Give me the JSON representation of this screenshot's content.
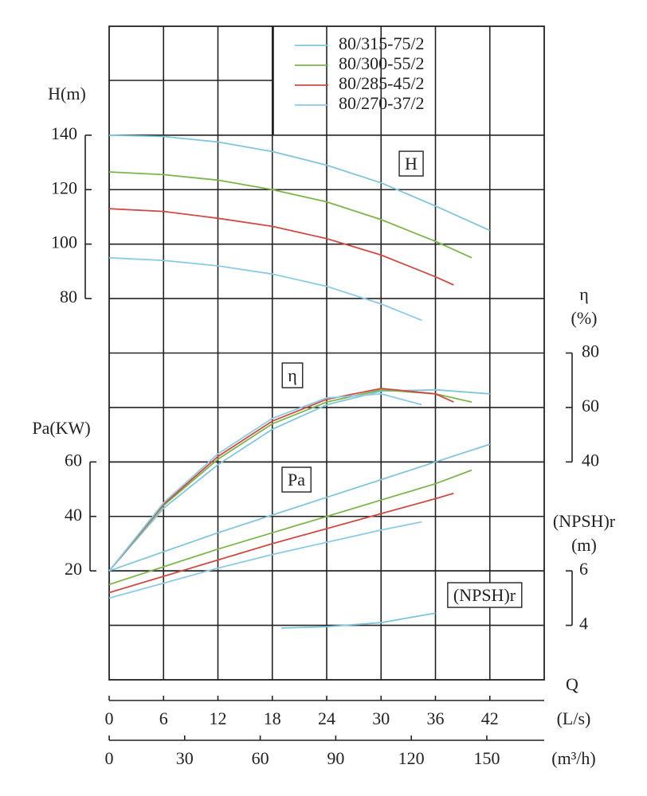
{
  "chart_data": {
    "type": "line",
    "xlabel": "Q",
    "x_axes": [
      {
        "label": "(L/s)",
        "lim": [
          0,
          48
        ],
        "ticks": [
          0,
          6,
          12,
          18,
          24,
          30,
          36,
          42
        ]
      },
      {
        "label": "(m³/h)",
        "lim": [
          0,
          172.8
        ],
        "ticks": [
          0,
          30,
          60,
          90,
          120,
          150
        ]
      }
    ],
    "panels": [
      {
        "ylabel": "H(m)",
        "annotation": "H",
        "side": "left",
        "ylim": [
          -60,
          180
        ],
        "yticks": [
          80,
          100,
          120,
          140
        ],
        "series": [
          {
            "name": "80/315-75/2",
            "color": "#7fc6dc",
            "x": [
              0,
              6,
              12,
              18,
              24,
              30,
              36,
              42
            ],
            "values": [
              140,
              139.5,
              137.5,
              134,
              129,
              122.5,
              114,
              105
            ]
          },
          {
            "name": "80/300-55/2",
            "color": "#7db54a",
            "x": [
              0,
              6,
              12,
              18,
              24,
              30,
              36,
              40
            ],
            "values": [
              126.5,
              125.5,
              123.5,
              120,
              115.5,
              109,
              101,
              95
            ]
          },
          {
            "name": "80/285-45/2",
            "color": "#cf4b44",
            "x": [
              0,
              6,
              12,
              18,
              24,
              30,
              36,
              38
            ],
            "values": [
              113,
              112,
              109.5,
              106.5,
              102,
              96,
              88,
              85
            ]
          },
          {
            "name": "80/270-37/2",
            "color": "#8ccbe6",
            "x": [
              0,
              6,
              12,
              18,
              24,
              30,
              34.5
            ],
            "values": [
              95,
              94,
              92,
              89,
              84.5,
              78,
              72
            ]
          }
        ]
      },
      {
        "ylabel": "η",
        "yunit": "(%)",
        "annotation": "η",
        "side": "right",
        "ylim": [
          -40,
          200
        ],
        "yticks": [
          40,
          60,
          80
        ],
        "series": [
          {
            "color": "#7fc6dc",
            "x": [
              0,
              6,
              12,
              18,
              24,
              30,
              36,
              42
            ],
            "values": [
              0,
              23,
              39,
              52,
              61,
              66,
              66.5,
              65
            ]
          },
          {
            "color": "#7db54a",
            "x": [
              0,
              6,
              12,
              18,
              24,
              30,
              36,
              40
            ],
            "values": [
              0,
              24,
              41,
              54,
              62,
              66.5,
              65,
              62
            ]
          },
          {
            "color": "#cf4b44",
            "x": [
              0,
              6,
              12,
              18,
              24,
              30,
              36,
              38
            ],
            "values": [
              0,
              24.5,
              42,
              55,
              63,
              67,
              65,
              62
            ]
          },
          {
            "color": "#8ccbe6",
            "x": [
              0,
              6,
              12,
              18,
              24,
              30,
              34.5
            ],
            "values": [
              0,
              25,
              43,
              56,
              63.5,
              65,
              61
            ]
          }
        ]
      },
      {
        "ylabel": "Pa(KW)",
        "annotation": "Pa",
        "side": "left",
        "ylim": [
          -20,
          220
        ],
        "yticks": [
          20,
          40,
          60
        ],
        "series": [
          {
            "color": "#7fc6dc",
            "x": [
              0,
              6,
              12,
              18,
              24,
              30,
              36,
              42
            ],
            "values": [
              20,
              27,
              34,
              40.5,
              47,
              53.5,
              60,
              66.5
            ]
          },
          {
            "color": "#7db54a",
            "x": [
              0,
              6,
              12,
              18,
              24,
              30,
              36,
              40
            ],
            "values": [
              15,
              21.5,
              28,
              34,
              40,
              46,
              52,
              57
            ]
          },
          {
            "color": "#cf4b44",
            "x": [
              0,
              6,
              12,
              18,
              24,
              30,
              36,
              38
            ],
            "values": [
              12,
              18,
              24,
              30,
              35.5,
              41,
              46.5,
              48.5
            ]
          },
          {
            "color": "#8ccbe6",
            "x": [
              0,
              6,
              12,
              18,
              24,
              30,
              34.5
            ],
            "values": [
              10,
              15.5,
              21,
              26,
              30.5,
              35,
              38
            ]
          }
        ]
      },
      {
        "ylabel": "(NPSH)r",
        "yunit": "(m)",
        "annotation": "(NPSH)r",
        "side": "right",
        "ylim": [
          2,
          26
        ],
        "yticks": [
          4,
          6
        ],
        "series": [
          {
            "color": "#7fc6dc",
            "x": [
              19,
              24,
              30,
              36
            ],
            "values": [
              3.9,
              3.95,
              4.1,
              4.45
            ]
          }
        ]
      }
    ]
  }
}
